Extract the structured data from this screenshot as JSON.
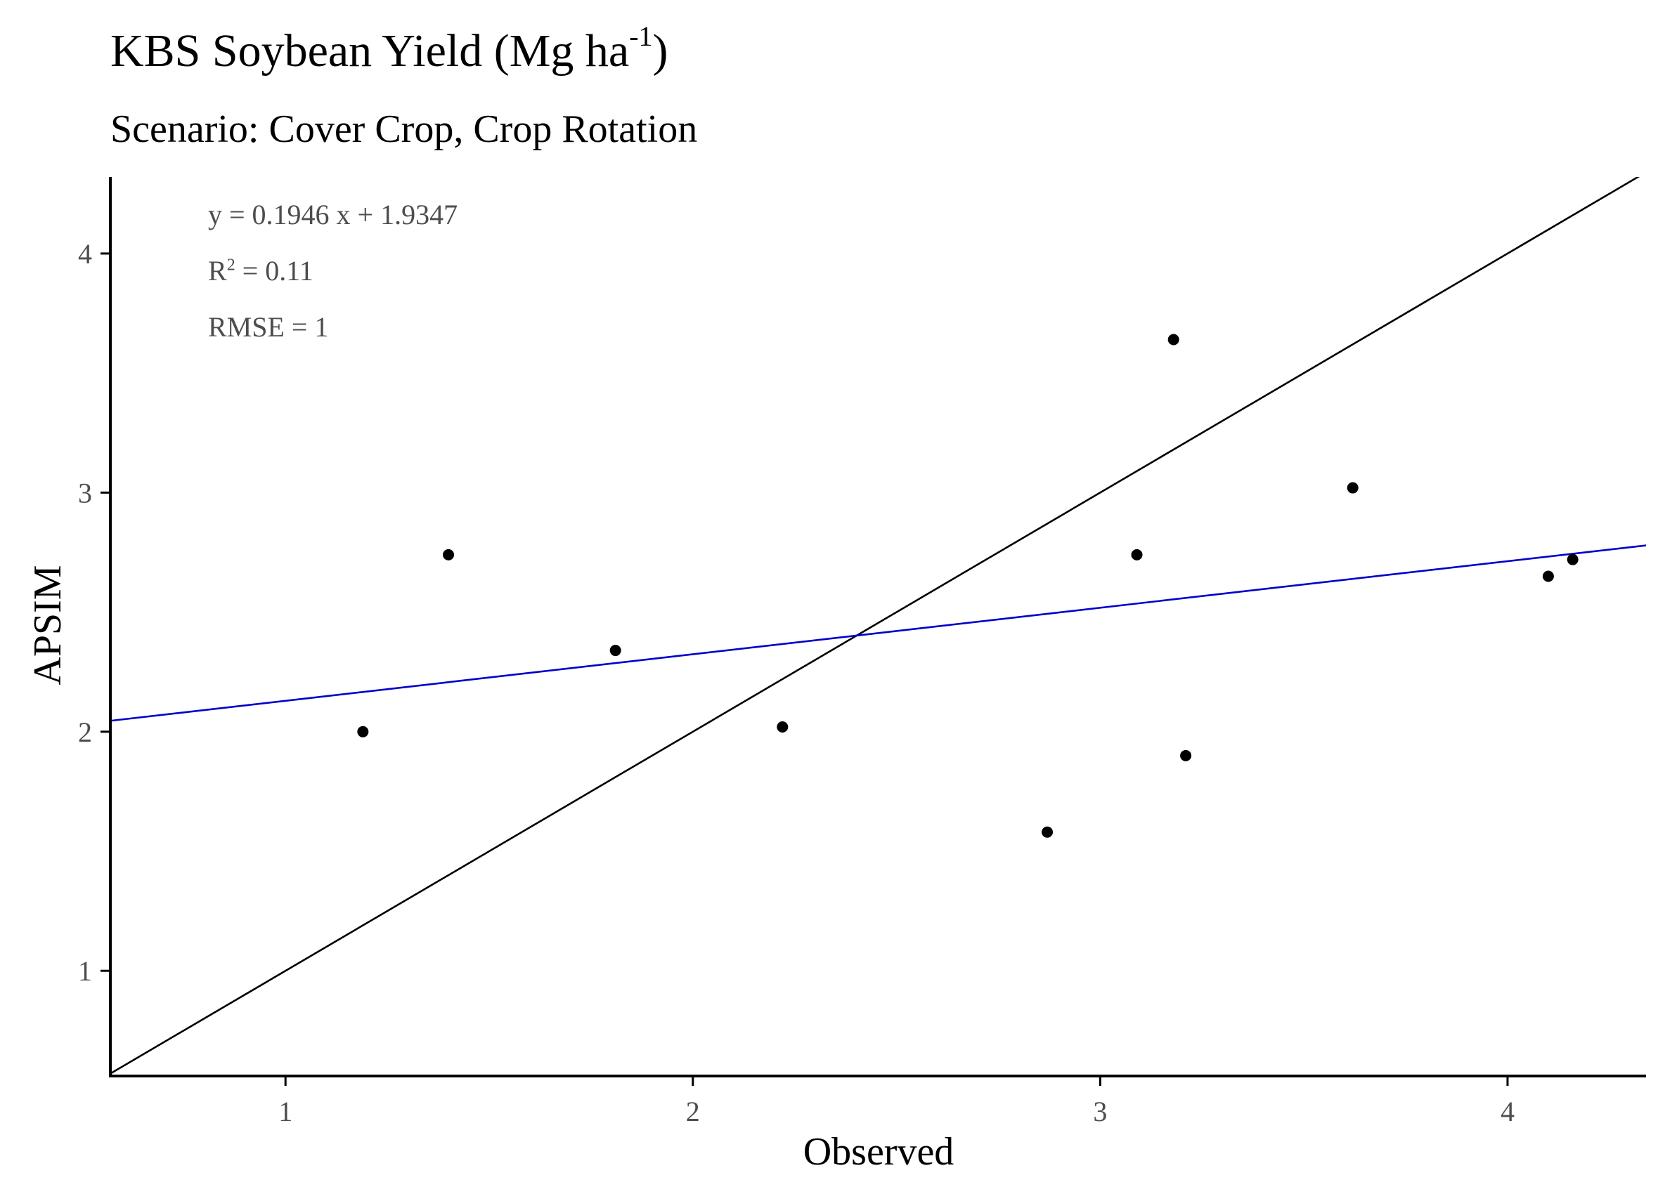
{
  "chart_data": {
    "type": "scatter",
    "title": "KBS Soybean Yield (Mg ha",
    "title_superscript": "-1",
    "title_suffix": ")",
    "subtitle": "Scenario: Cover Crop, Crop Rotation",
    "xlabel": "Observed",
    "ylabel": "APSIM",
    "xlim": [
      0.57,
      4.34
    ],
    "ylim": [
      0.56,
      4.32
    ],
    "x_ticks": [
      1,
      2,
      3,
      4
    ],
    "y_ticks": [
      1,
      2,
      3,
      4
    ],
    "x_tick_labels": [
      "1",
      "2",
      "3",
      "4"
    ],
    "y_tick_labels": [
      "1",
      "2",
      "3",
      "4"
    ],
    "grid": false,
    "points": [
      {
        "x": 1.19,
        "y": 2.0
      },
      {
        "x": 1.4,
        "y": 2.74
      },
      {
        "x": 1.81,
        "y": 2.34
      },
      {
        "x": 2.22,
        "y": 2.02
      },
      {
        "x": 2.87,
        "y": 1.58
      },
      {
        "x": 3.09,
        "y": 2.74
      },
      {
        "x": 3.18,
        "y": 3.64
      },
      {
        "x": 3.21,
        "y": 1.9
      },
      {
        "x": 3.62,
        "y": 3.02
      },
      {
        "x": 4.1,
        "y": 2.65
      },
      {
        "x": 4.16,
        "y": 2.72
      }
    ],
    "lines": [
      {
        "label": "1:1",
        "slope": 1.0,
        "intercept": 0.0,
        "color": "#000000"
      },
      {
        "label": "regression",
        "slope": 0.1946,
        "intercept": 1.9347,
        "color": "#0000cc"
      }
    ],
    "annotations": {
      "equation": "y = 0.1946 x + 1.9347",
      "r2_prefix": "R",
      "r2_superscript": "2",
      "r2_value": " = 0.11",
      "rmse": "RMSE = 1"
    },
    "colors": {
      "points": "#000000",
      "axis": "#000000",
      "tick_label": "#4d4d4d"
    }
  }
}
